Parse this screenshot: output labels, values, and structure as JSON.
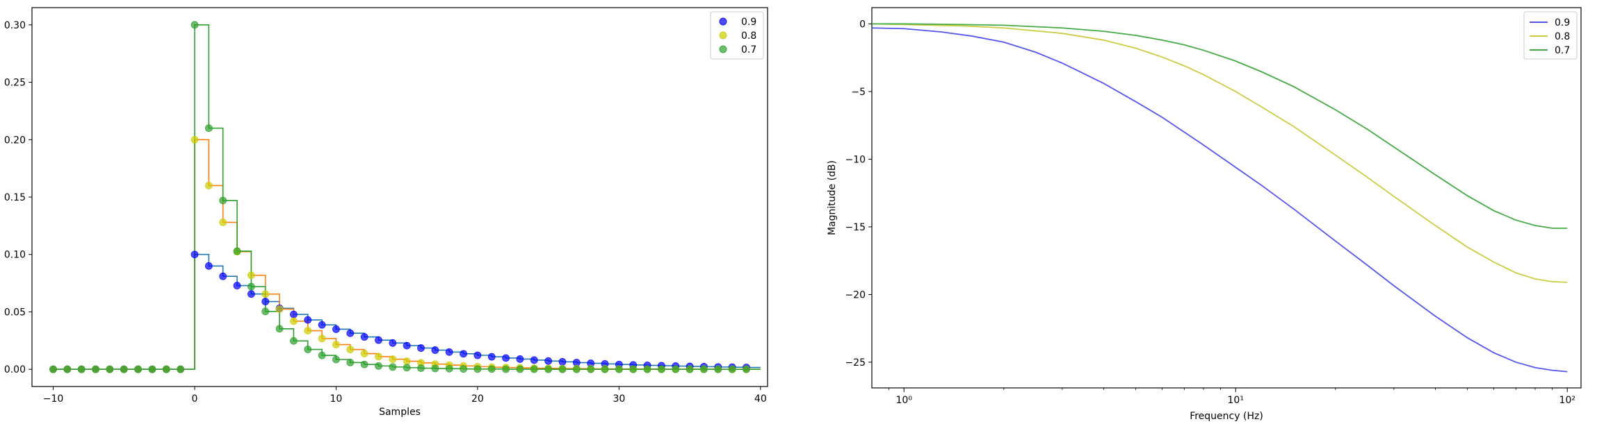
{
  "chart_data": [
    {
      "type": "line",
      "subtype": "step-stem",
      "xlabel": "Samples",
      "ylabel": "",
      "xlim": [
        -11.5,
        40.5
      ],
      "ylim": [
        -0.015,
        0.315
      ],
      "xticks": [
        -10,
        0,
        10,
        20,
        30,
        40
      ],
      "yticks": [
        0.0,
        0.05,
        0.1,
        0.15,
        0.2,
        0.25,
        0.3
      ],
      "ytick_labels": [
        "0.00",
        "0.05",
        "0.10",
        "0.15",
        "0.20",
        "0.25",
        "0.30"
      ],
      "x_range": [
        -10,
        39
      ],
      "legend_position": "top-right",
      "series": [
        {
          "name": "0.9",
          "a": 0.9,
          "step_color": "#1f77b4",
          "marker_color": "#0000ff",
          "values": [
            0,
            0,
            0,
            0,
            0,
            0,
            0,
            0,
            0,
            0,
            0.1,
            0.09,
            0.081,
            0.0729,
            0.0656,
            0.059,
            0.0531,
            0.0478,
            0.043,
            0.0387,
            0.0349,
            0.0314,
            0.0282,
            0.0254,
            0.0229,
            0.0206,
            0.0185,
            0.0167,
            0.015,
            0.0135,
            0.0122,
            0.0109,
            0.0098,
            0.0089,
            0.008,
            0.0072,
            0.0065,
            0.0058,
            0.0052,
            0.0047,
            0.0042,
            0.0038,
            0.0034,
            0.0031,
            0.0028,
            0.0025,
            0.0023,
            0.002,
            0.0018,
            0.0016
          ]
        },
        {
          "name": "0.8",
          "a": 0.8,
          "step_color": "#ff7f0e",
          "marker_color": "#cccc00",
          "values": [
            0,
            0,
            0,
            0,
            0,
            0,
            0,
            0,
            0,
            0,
            0.2,
            0.16,
            0.128,
            0.1024,
            0.0819,
            0.0655,
            0.0524,
            0.0419,
            0.0336,
            0.0268,
            0.0215,
            0.0172,
            0.0137,
            0.011,
            0.0088,
            0.007,
            0.0056,
            0.0045,
            0.0036,
            0.0029,
            0.0023,
            0.0018,
            0.0015,
            0.0012,
            0.0009,
            0.0008,
            0.0006,
            0.0005,
            0.0004,
            0.0003,
            0.0002,
            0.0002,
            0.0002,
            0.0001,
            0.0001,
            0.0001,
            0.0001,
            0,
            0,
            0
          ]
        },
        {
          "name": "0.7",
          "a": 0.7,
          "step_color": "#2ca02c",
          "marker_color": "#2ca02c",
          "values": [
            0,
            0,
            0,
            0,
            0,
            0,
            0,
            0,
            0,
            0,
            0.3,
            0.21,
            0.147,
            0.1029,
            0.072,
            0.0504,
            0.0353,
            0.0247,
            0.0173,
            0.0121,
            0.0085,
            0.0059,
            0.0042,
            0.0029,
            0.002,
            0.0014,
            0.001,
            0.0007,
            0.0005,
            0.0003,
            0.0002,
            0.0002,
            0.0001,
            0.0001,
            0.0001,
            0,
            0,
            0,
            0,
            0,
            0,
            0,
            0,
            0,
            0,
            0,
            0,
            0,
            0,
            0
          ]
        }
      ]
    },
    {
      "type": "line",
      "xscale": "log",
      "xlabel": "Frequency (Hz)",
      "ylabel": "Magnitude (dB)",
      "xlim": [
        0.8,
        110
      ],
      "ylim": [
        -26.9,
        1.2
      ],
      "xticks": [
        1,
        10,
        100
      ],
      "xtick_labels": [
        "10⁰",
        "10¹",
        "10²"
      ],
      "yticks": [
        0,
        -5,
        -10,
        -15,
        -20,
        -25
      ],
      "ytick_labels": [
        "0",
        "−5",
        "−10",
        "−15",
        "−20",
        "−25"
      ],
      "legend_position": "top-right",
      "series": [
        {
          "name": "0.9",
          "color": "#5555ee",
          "x": [
            0.8,
            1.0,
            1.3,
            1.6,
            2.0,
            2.5,
            3.0,
            3.5,
            4.0,
            5.0,
            6.0,
            7.0,
            8.0,
            10,
            12,
            15,
            20,
            25,
            30,
            40,
            50,
            60,
            70,
            80,
            90,
            100
          ],
          "y": [
            -0.3,
            -0.35,
            -0.6,
            -0.9,
            -1.35,
            -2.1,
            -2.9,
            -3.7,
            -4.4,
            -5.75,
            -6.9,
            -8.0,
            -8.95,
            -10.6,
            -11.95,
            -13.7,
            -16.05,
            -17.85,
            -19.35,
            -21.6,
            -23.2,
            -24.3,
            -25.0,
            -25.4,
            -25.6,
            -25.7
          ]
        },
        {
          "name": "0.8",
          "color": "#cccc44",
          "x": [
            0.8,
            1.0,
            1.5,
            2.0,
            3.0,
            4.0,
            5.0,
            6.0,
            7.0,
            8.0,
            10,
            12,
            15,
            20,
            25,
            30,
            40,
            50,
            60,
            70,
            80,
            90,
            100
          ],
          "y": [
            0,
            -0.05,
            -0.15,
            -0.3,
            -0.7,
            -1.2,
            -1.8,
            -2.45,
            -3.1,
            -3.75,
            -5.0,
            -6.15,
            -7.6,
            -9.7,
            -11.35,
            -12.75,
            -14.9,
            -16.5,
            -17.6,
            -18.4,
            -18.85,
            -19.05,
            -19.1
          ]
        },
        {
          "name": "0.7",
          "color": "#44aa44",
          "x": [
            0.8,
            1.0,
            1.5,
            2.0,
            3.0,
            4.0,
            5.0,
            6.0,
            7.0,
            8.0,
            10,
            12,
            15,
            20,
            25,
            30,
            40,
            50,
            60,
            70,
            80,
            90,
            100
          ],
          "y": [
            0,
            0,
            -0.05,
            -0.1,
            -0.3,
            -0.55,
            -0.85,
            -1.2,
            -1.55,
            -1.95,
            -2.75,
            -3.55,
            -4.65,
            -6.35,
            -7.8,
            -9.1,
            -11.15,
            -12.7,
            -13.8,
            -14.5,
            -14.9,
            -15.1,
            -15.1
          ]
        }
      ]
    }
  ]
}
